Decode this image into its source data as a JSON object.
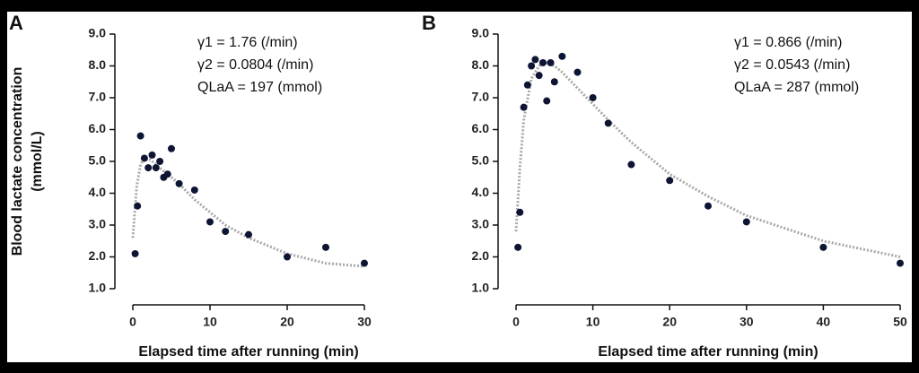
{
  "chart_data": [
    {
      "type": "scatter",
      "panel_label": "A",
      "ylabel": [
        "Blood lactate concentration",
        "(mmol/L)"
      ],
      "xlabel": "Elapsed time after running (min)",
      "annotations": [
        "γ1 = 1.76 (/min)",
        "γ2 = 0.0804 (/min)",
        "QLaA = 197 (mmol)"
      ],
      "x": [
        0.3,
        0.6,
        1,
        1.5,
        2,
        2.5,
        3,
        3.5,
        4,
        4.5,
        5,
        6,
        8,
        10,
        12,
        15,
        20,
        25,
        30
      ],
      "values": [
        2.1,
        3.6,
        5.8,
        5.1,
        4.8,
        5.2,
        4.8,
        5.0,
        4.5,
        4.6,
        5.4,
        4.3,
        4.1,
        3.1,
        2.8,
        2.7,
        2.0,
        2.3,
        1.8
      ],
      "color": "#0d1533",
      "fit": {
        "x": [
          0,
          0.5,
          1,
          1.5,
          2,
          3,
          4,
          5,
          6,
          8,
          10,
          12,
          15,
          20,
          25,
          30
        ],
        "values": [
          2.6,
          4.2,
          4.9,
          5.1,
          5.1,
          4.9,
          4.7,
          4.5,
          4.3,
          3.8,
          3.4,
          3.0,
          2.6,
          2.1,
          1.8,
          1.7
        ],
        "color": "#a8a8a8"
      },
      "xlim": [
        0,
        30
      ],
      "xticks": [
        0,
        10,
        20,
        30
      ],
      "ylim": [
        1,
        9
      ],
      "yticks": [
        {
          "value": 1,
          "label": "1.0"
        },
        {
          "value": 2,
          "label": "2.0"
        },
        {
          "value": 3,
          "label": "3.0"
        },
        {
          "value": 4,
          "label": "4.0"
        },
        {
          "value": 5,
          "label": "5.0"
        },
        {
          "value": 6,
          "label": "6.0"
        },
        {
          "value": 7,
          "label": "7.0"
        },
        {
          "value": 8,
          "label": "8.0"
        },
        {
          "value": 9,
          "label": "9.0"
        }
      ]
    },
    {
      "type": "scatter",
      "panel_label": "B",
      "xlabel": "Elapsed time after running (min)",
      "annotations": [
        "γ1 = 0.866 (/min)",
        "γ2 = 0.0543 (/min)",
        "QLaA = 287 (mmol)"
      ],
      "x": [
        0.25,
        0.5,
        1,
        1.5,
        2,
        2.5,
        3,
        3.5,
        4,
        4.5,
        5,
        6,
        8,
        10,
        12,
        15,
        20,
        25,
        30,
        40,
        50
      ],
      "values": [
        2.3,
        3.4,
        6.7,
        7.4,
        8.0,
        8.2,
        7.7,
        8.1,
        6.9,
        8.1,
        7.5,
        8.3,
        7.8,
        7.0,
        6.2,
        4.9,
        4.4,
        3.6,
        3.1,
        2.3,
        1.8
      ],
      "color": "#0d1533",
      "fit": {
        "x": [
          0,
          0.5,
          1,
          2,
          3,
          4,
          5,
          6,
          8,
          10,
          12,
          15,
          20,
          25,
          30,
          40,
          50
        ],
        "values": [
          2.8,
          4.8,
          6.3,
          7.6,
          8.0,
          8.1,
          8.0,
          7.8,
          7.3,
          6.8,
          6.3,
          5.6,
          4.6,
          3.9,
          3.3,
          2.5,
          2.0
        ],
        "color": "#a8a8a8"
      },
      "xlim": [
        0,
        50
      ],
      "xticks": [
        0,
        10,
        20,
        30,
        40,
        50
      ],
      "ylim": [
        1,
        9
      ],
      "yticks": [
        {
          "value": 1,
          "label": "1.0"
        },
        {
          "value": 2,
          "label": "2.0"
        },
        {
          "value": 3,
          "label": "3.0"
        },
        {
          "value": 4,
          "label": "4.0"
        },
        {
          "value": 5,
          "label": "5.0"
        },
        {
          "value": 6,
          "label": "6.0"
        },
        {
          "value": 7,
          "label": "7.0"
        },
        {
          "value": 8,
          "label": "8.0"
        },
        {
          "value": 9,
          "label": "9.0"
        }
      ]
    }
  ]
}
